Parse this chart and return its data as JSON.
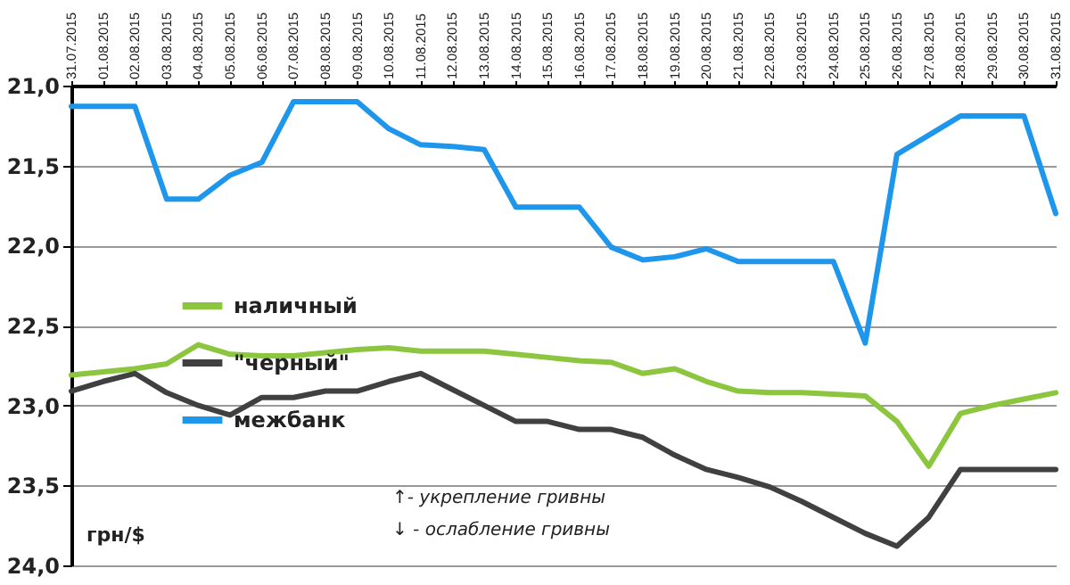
{
  "chart_data": {
    "type": "line",
    "ylabel": "грн/$",
    "categories": [
      "31.07.2015",
      "01.08.2015",
      "02.08.2015",
      "03.08.2015",
      "04.08.2015",
      "05.08.2015",
      "06.08.2015",
      "07.08.2015",
      "08.08.2015",
      "09.08.2015",
      "10.08.2015",
      "11.08.2015",
      "12.08.2015",
      "13.08.2015",
      "14.08.2015",
      "15.08.2015",
      "16.08.2015",
      "17.08.2015",
      "18.08.2015",
      "19.08.2015",
      "20.08.2015",
      "21.08.2015",
      "22.08.2015",
      "23.08.2015",
      "24.08.2015",
      "25.08.2015",
      "26.08.2015",
      "27.08.2015",
      "28.08.2015",
      "29.08.2015",
      "30.08.2015",
      "31.08.2015"
    ],
    "series": [
      {
        "name": "наличный",
        "color": "#8cc63f",
        "values": [
          22.81,
          22.79,
          22.77,
          22.74,
          22.62,
          22.68,
          22.69,
          22.69,
          22.67,
          22.65,
          22.64,
          22.66,
          22.66,
          22.66,
          22.68,
          22.7,
          22.72,
          22.73,
          22.8,
          22.77,
          22.85,
          22.91,
          22.92,
          22.92,
          22.93,
          22.94,
          23.1,
          23.38,
          23.05,
          23.0,
          22.96,
          22.92
        ]
      },
      {
        "name": "\"черный\"",
        "color": "#404040",
        "values": [
          22.91,
          22.85,
          22.8,
          22.92,
          23.0,
          23.06,
          22.95,
          22.95,
          22.91,
          22.91,
          22.85,
          22.8,
          22.9,
          23.0,
          23.1,
          23.1,
          23.15,
          23.15,
          23.2,
          23.31,
          23.4,
          23.45,
          23.51,
          23.6,
          23.7,
          23.8,
          23.88,
          23.7,
          23.4,
          23.4,
          23.4,
          23.4
        ]
      },
      {
        "name": "межбанк",
        "color": "#1e96ec",
        "values": [
          21.13,
          21.13,
          21.13,
          21.71,
          21.71,
          21.56,
          21.48,
          21.1,
          21.1,
          21.1,
          21.27,
          21.37,
          21.38,
          21.4,
          21.76,
          21.76,
          21.76,
          22.01,
          22.09,
          22.07,
          22.02,
          22.1,
          22.1,
          22.1,
          22.1,
          22.61,
          21.43,
          21.31,
          21.19,
          21.19,
          21.19,
          21.8
        ]
      }
    ],
    "ylim": [
      24.0,
      21.0
    ],
    "yticks": [
      {
        "value": 21.0,
        "label": "21,0"
      },
      {
        "value": 21.5,
        "label": "21,5"
      },
      {
        "value": 22.0,
        "label": "22,0"
      },
      {
        "value": 22.5,
        "label": "22,5"
      },
      {
        "value": 23.0,
        "label": "23,0"
      },
      {
        "value": 23.5,
        "label": "23,5"
      },
      {
        "value": 24.0,
        "label": "24,0"
      }
    ],
    "grid": "y",
    "legend": "left",
    "marker": "none",
    "line_style": "solid",
    "annotations": [
      "↑- укрепление гривны",
      "↓ - ослабление гривны"
    ]
  }
}
